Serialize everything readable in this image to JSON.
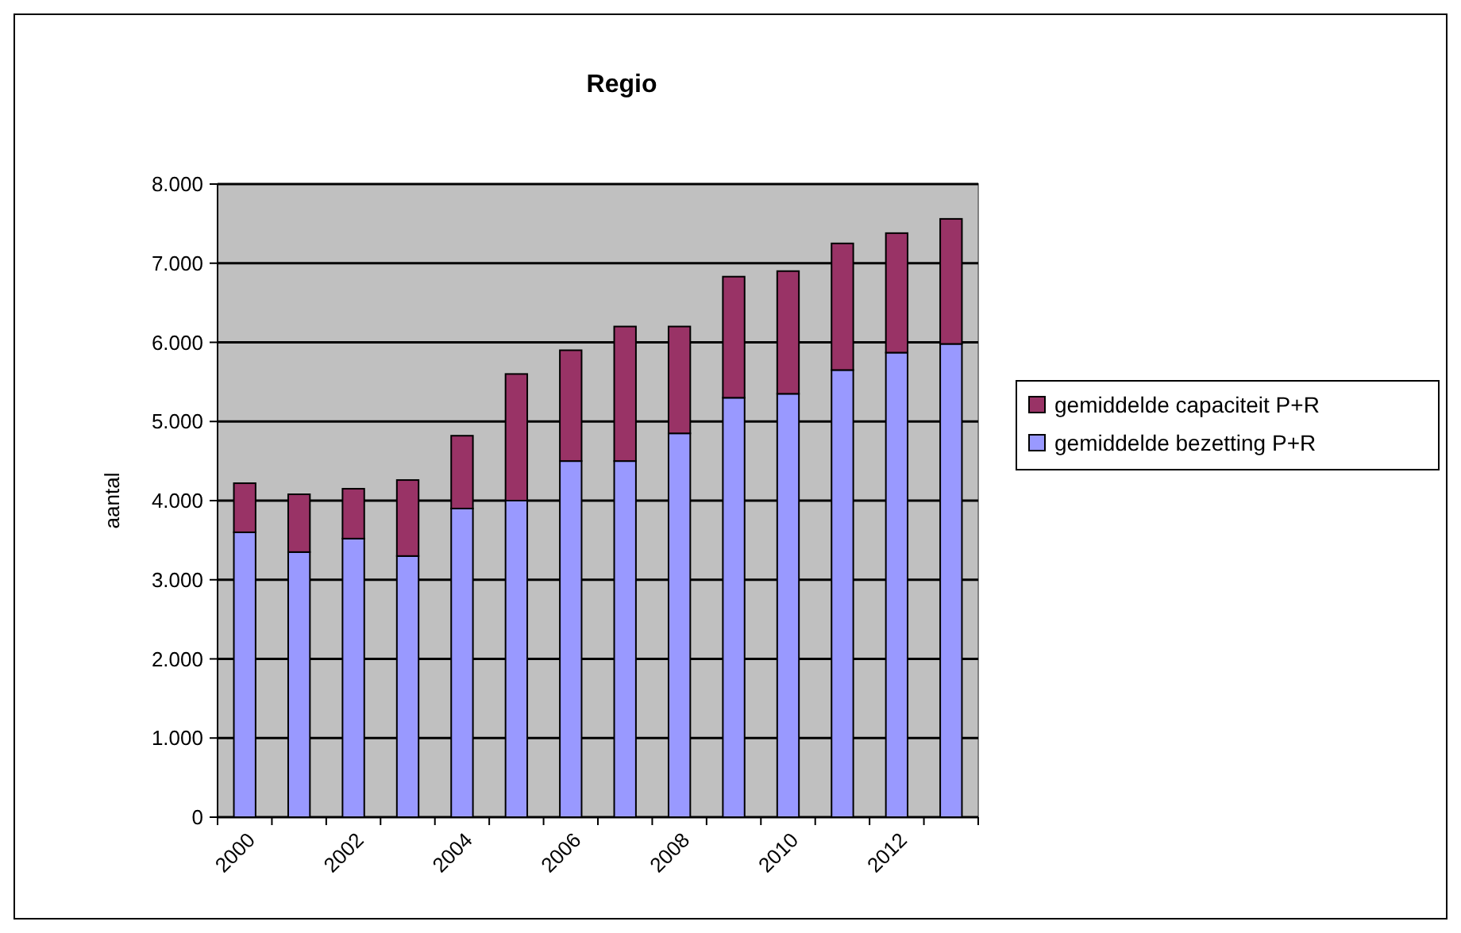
{
  "chart_data": {
    "type": "bar",
    "title": "Regio",
    "ylabel": "aantal",
    "stacked": true,
    "categories": [
      "2000",
      null,
      "2002",
      null,
      "2004",
      null,
      "2006",
      null,
      "2008",
      null,
      "2010",
      null,
      "2012",
      null
    ],
    "series": [
      {
        "name": "gemiddelde bezetting P+R",
        "color": "#9999ff",
        "values": [
          3600,
          3350,
          3520,
          3300,
          3900,
          4000,
          4500,
          4500,
          4850,
          5300,
          5350,
          5650,
          5870,
          5980
        ]
      },
      {
        "name": "gemiddelde capaciteit P+R",
        "color": "#993366",
        "values": [
          620,
          730,
          630,
          960,
          920,
          1600,
          1400,
          1700,
          1350,
          1530,
          1550,
          1600,
          1510,
          1580
        ]
      }
    ],
    "ylim": [
      0,
      8000
    ],
    "yticks": [
      {
        "value": 0,
        "label": "0"
      },
      {
        "value": 1000,
        "label": "1.000"
      },
      {
        "value": 2000,
        "label": "2.000"
      },
      {
        "value": 3000,
        "label": "3.000"
      },
      {
        "value": 4000,
        "label": "4.000"
      },
      {
        "value": 5000,
        "label": "5.000"
      },
      {
        "value": 6000,
        "label": "6.000"
      },
      {
        "value": 7000,
        "label": "7.000"
      },
      {
        "value": 8000,
        "label": "8.000"
      }
    ],
    "grid": "y",
    "legend": "right"
  }
}
